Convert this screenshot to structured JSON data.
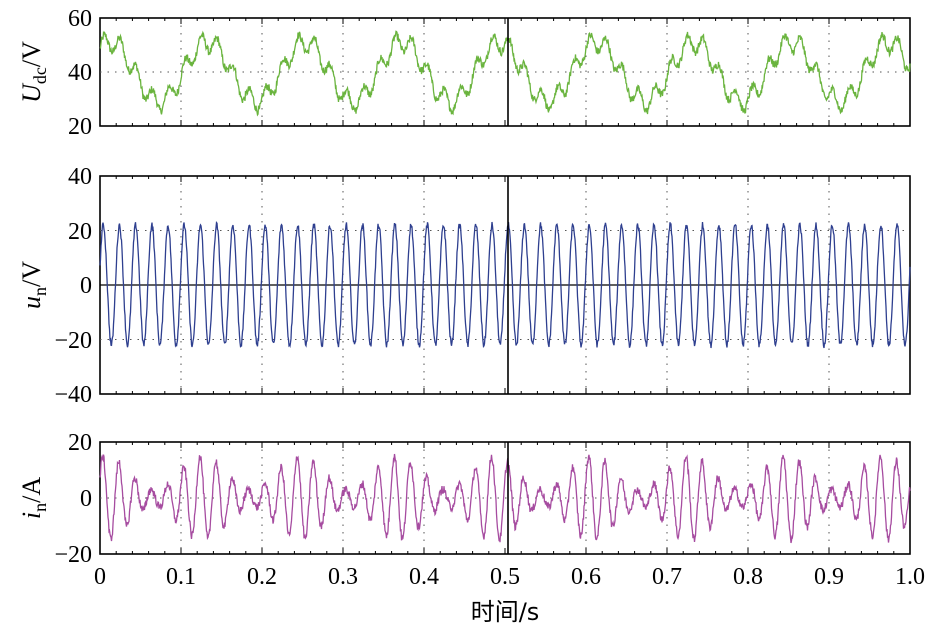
{
  "chart_data": [
    {
      "type": "line",
      "id": "udc",
      "ylabel_main": "U",
      "ylabel_sub": "dc",
      "ylabel_unit": "/V",
      "ylim": [
        20,
        60
      ],
      "yticks": [
        20,
        40,
        60
      ],
      "xlim": [
        0,
        1.0
      ],
      "grid": true,
      "series": [
        {
          "color": "#6ab43e",
          "mean": 40,
          "sine_amplitude": 11,
          "sine_frequency_hz": 8.33,
          "ripple_amplitude": 3.5,
          "ripple_frequency_hz": 50,
          "noise_amplitude": 1.5
        }
      ]
    },
    {
      "type": "line",
      "id": "un",
      "ylabel_main": "u",
      "ylabel_sub": "n",
      "ylabel_unit": "/V",
      "ylim": [
        -40,
        40
      ],
      "yticks": [
        -40,
        -20,
        0,
        20,
        40
      ],
      "xlim": [
        0,
        1.0
      ],
      "grid": true,
      "series": [
        {
          "color": "#2e3f8f",
          "mean": 0,
          "sine_amplitude": 22,
          "sine_frequency_hz": 50,
          "noise_amplitude": 1.2
        }
      ]
    },
    {
      "type": "line",
      "id": "in",
      "ylabel_main": "i",
      "ylabel_sub": "n",
      "ylabel_unit": "/A",
      "ylim": [
        -20,
        20
      ],
      "yticks": [
        -20,
        0,
        20
      ],
      "xlim": [
        0,
        1.0
      ],
      "xticks": [
        0,
        0.1,
        0.2,
        0.3,
        0.4,
        0.5,
        0.6,
        0.7,
        0.8,
        0.9,
        1.0
      ],
      "xtick_labels": [
        "0",
        "0.1",
        "0.2",
        "0.3",
        "0.4",
        "0.5",
        "0.6",
        "0.7",
        "0.8",
        "0.9",
        "1.0"
      ],
      "xlabel": "时间/s",
      "grid": true,
      "series": [
        {
          "color": "#a64ca0",
          "mean": 0,
          "carrier_frequency_hz": 50,
          "envelope_mean": 9,
          "envelope_swing": 6,
          "envelope_frequency_hz": 8.33,
          "noise_amplitude": 1.5
        }
      ]
    }
  ],
  "yticks_text": {
    "udc": [
      "20",
      "40",
      "60"
    ],
    "un": [
      "−40",
      "−20",
      "0",
      "20",
      "40"
    ],
    "in": [
      "−20",
      "0",
      "20"
    ]
  }
}
